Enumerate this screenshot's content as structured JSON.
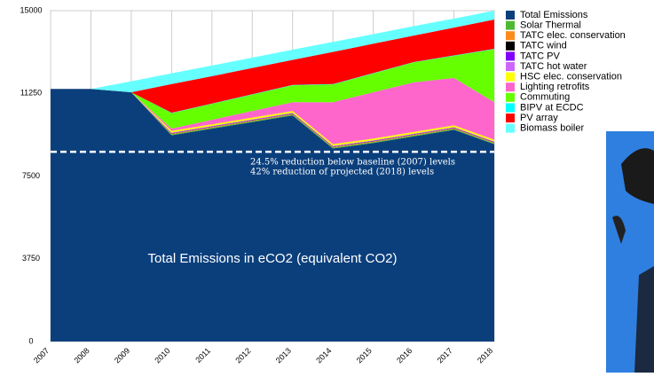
{
  "chart_data": {
    "type": "stacked-area",
    "categories": [
      "2007",
      "2008",
      "2009",
      "2010",
      "2011",
      "2012",
      "2013",
      "2014",
      "2015",
      "2016",
      "2017",
      "2018"
    ],
    "series": [
      {
        "name": "Total Emissions",
        "color": "#0b3f7c",
        "values": [
          11450,
          11450,
          11300,
          9350,
          9650,
          9950,
          10250,
          8750,
          9000,
          9300,
          9600,
          8950
        ]
      },
      {
        "name": "Solar Thermal",
        "color": "#4fb832",
        "values": [
          0,
          0,
          0,
          40,
          40,
          40,
          40,
          40,
          40,
          40,
          40,
          40
        ]
      },
      {
        "name": "TATC elec. conservation",
        "color": "#ff8a1c",
        "values": [
          0,
          0,
          0,
          30,
          30,
          30,
          30,
          30,
          30,
          30,
          30,
          30
        ]
      },
      {
        "name": "TATC wind",
        "color": "#000000",
        "values": [
          0,
          0,
          0,
          10,
          10,
          10,
          10,
          10,
          10,
          10,
          10,
          10
        ]
      },
      {
        "name": "TATC PV",
        "color": "#8000ff",
        "values": [
          0,
          0,
          0,
          20,
          20,
          20,
          20,
          20,
          20,
          20,
          20,
          20
        ]
      },
      {
        "name": "TATC hot water",
        "color": "#cc66ff",
        "values": [
          0,
          0,
          0,
          20,
          20,
          20,
          20,
          20,
          20,
          20,
          20,
          20
        ]
      },
      {
        "name": "HSC elec. conservation",
        "color": "#ffff00",
        "values": [
          0,
          0,
          0,
          80,
          80,
          80,
          80,
          80,
          80,
          80,
          80,
          80
        ]
      },
      {
        "name": "Lighting retrofits",
        "color": "#ff66cc",
        "values": [
          0,
          0,
          0,
          100,
          200,
          300,
          400,
          1900,
          2100,
          2250,
          2150,
          1700
        ]
      },
      {
        "name": "Commuting",
        "color": "#66ff00",
        "values": [
          0,
          0,
          0,
          700,
          720,
          740,
          760,
          800,
          850,
          900,
          1000,
          2400
        ]
      },
      {
        "name": "BIPV at ECDC",
        "color": "#00ffff",
        "values": [
          0,
          0,
          0,
          20,
          20,
          20,
          20,
          20,
          20,
          20,
          20,
          20
        ]
      },
      {
        "name": "PV array",
        "color": "#ff0000",
        "values": [
          0,
          0,
          0,
          1300,
          1240,
          1190,
          1140,
          1460,
          1330,
          1200,
          1260,
          1330
        ]
      },
      {
        "name": "Biomass boiler",
        "color": "#66ffff",
        "values": [
          0,
          0,
          500,
          490,
          480,
          470,
          460,
          450,
          435,
          425,
          410,
          400
        ]
      }
    ],
    "ylim": [
      0,
      15000
    ],
    "yticks": [
      0,
      3750,
      7500,
      11250,
      15000
    ],
    "grid": true,
    "reference_line": {
      "value": 8600,
      "labels": [
        "24.5% reduction below baseline (2007) levels",
        "42% reduction of projected (2018) levels"
      ]
    },
    "annotation": "Total Emissions in eCO2 (equivalent CO2)"
  }
}
